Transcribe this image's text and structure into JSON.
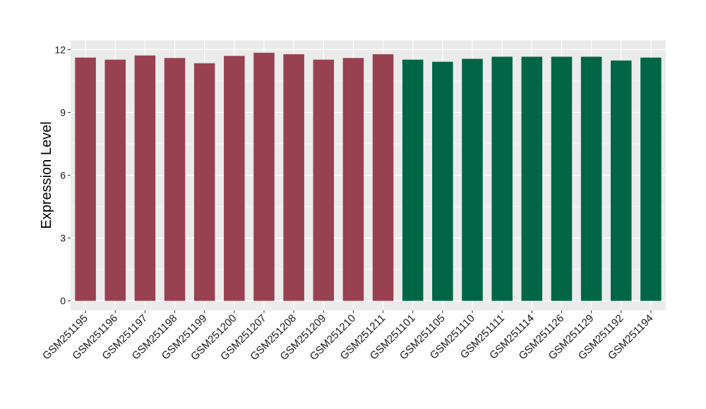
{
  "chart_data": {
    "type": "bar",
    "title": "",
    "xlabel": "",
    "ylabel": "Expression Level",
    "ylim": [
      -0.45,
      12.45
    ],
    "yticks": [
      0,
      3,
      6,
      9,
      12
    ],
    "ytick_labels": [
      "0",
      "3",
      "6",
      "9",
      "12"
    ],
    "grid": true,
    "legend": "none",
    "categories": [
      "GSM251195",
      "GSM251196",
      "GSM251197",
      "GSM251198",
      "GSM251199",
      "GSM251200",
      "GSM251207",
      "GSM251208",
      "GSM251209",
      "GSM251210",
      "GSM251211",
      "GSM251101",
      "GSM251105",
      "GSM251110",
      "GSM251111",
      "GSM251114",
      "GSM251126",
      "GSM251129",
      "GSM251192",
      "GSM251194"
    ],
    "values": [
      11.62,
      11.52,
      11.72,
      11.6,
      11.35,
      11.7,
      11.85,
      11.78,
      11.52,
      11.6,
      11.78,
      11.52,
      11.42,
      11.56,
      11.66,
      11.66,
      11.66,
      11.66,
      11.48,
      11.62
    ],
    "groups": [
      "A",
      "A",
      "A",
      "A",
      "A",
      "A",
      "A",
      "A",
      "A",
      "A",
      "A",
      "B",
      "B",
      "B",
      "B",
      "B",
      "B",
      "B",
      "B",
      "B"
    ],
    "group_colors": {
      "A": "#984150",
      "B": "#006646"
    },
    "panel_background": "#ebebeb",
    "gridline_color": "#ffffff"
  }
}
